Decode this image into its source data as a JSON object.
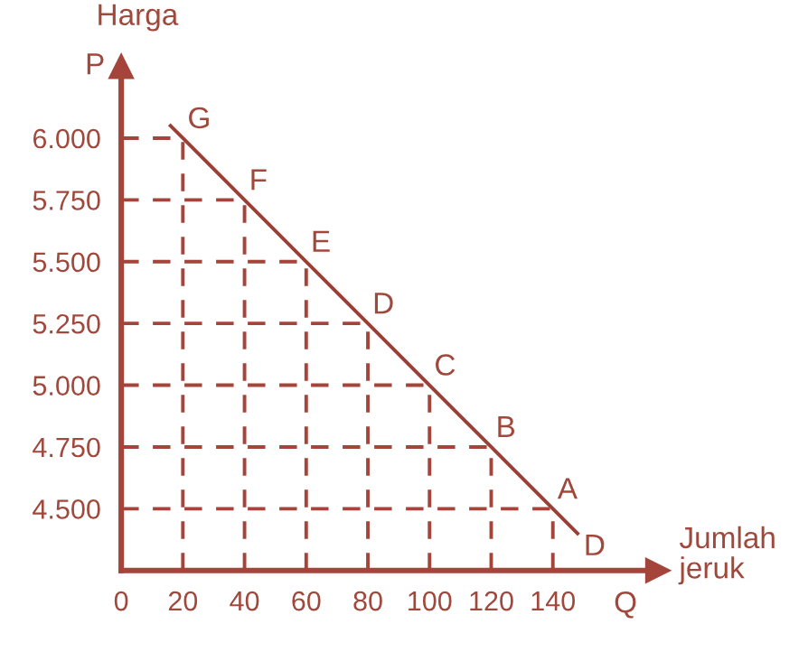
{
  "chart_data": {
    "type": "line",
    "xlabel": "Jumlah\njeruk",
    "ylabel": "Harga",
    "x": [
      16,
      20,
      40,
      60,
      80,
      100,
      120,
      140,
      148
    ],
    "series": [
      {
        "name": "D",
        "color": "#9b3f36",
        "values": [
          6050,
          6000,
          5750,
          5500,
          5250,
          5000,
          4750,
          4500,
          4400
        ]
      }
    ],
    "xlim": [
      0,
      174
    ],
    "ylim": [
      4250,
      6290
    ],
    "xticks": [
      0,
      20,
      40,
      60,
      80,
      100,
      120,
      140
    ],
    "yticks": [
      {
        "value": 4500,
        "label": "4.500"
      },
      {
        "value": 4750,
        "label": "4.750"
      },
      {
        "value": 5000,
        "label": "5.000"
      },
      {
        "value": 5250,
        "label": "5.250"
      },
      {
        "value": 5500,
        "label": "5.500"
      },
      {
        "value": 5750,
        "label": "5.750"
      },
      {
        "value": 6000,
        "label": "6.000"
      }
    ],
    "grid": true,
    "marker": "none",
    "line_style": "solid",
    "annotations": [
      {
        "text": "G",
        "x": 20,
        "y": 6000
      },
      {
        "text": "F",
        "x": 40,
        "y": 5750
      },
      {
        "text": "E",
        "x": 60,
        "y": 5500
      },
      {
        "text": "D",
        "x": 80,
        "y": 5250
      },
      {
        "text": "C",
        "x": 100,
        "y": 5000
      },
      {
        "text": "B",
        "x": 120,
        "y": 4750
      },
      {
        "text": "A",
        "x": 140,
        "y": 4500
      },
      "P",
      "Q"
    ]
  }
}
